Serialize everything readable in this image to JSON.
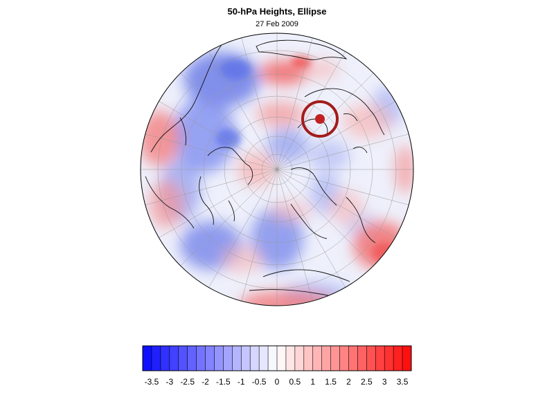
{
  "title": "50-hPa Heights, Ellipse",
  "subtitle": "27 Feb 2009",
  "colorbar": {
    "labels": [
      "-3.5",
      "-3",
      "-2.5",
      "-2",
      "-1.5",
      "-1",
      "-0.5",
      "0",
      "0.5",
      "1",
      "1.5",
      "2",
      "2.5",
      "3",
      "3.5"
    ],
    "min": -3.75,
    "max": 3.75,
    "step": 0.25,
    "negative_color": "#1010ff",
    "positive_color": "#ff1010",
    "neutral_color": "#ffffff"
  },
  "ellipse_marker": {
    "ring_color": "#a31b1b",
    "center_color": "#c32020"
  }
}
